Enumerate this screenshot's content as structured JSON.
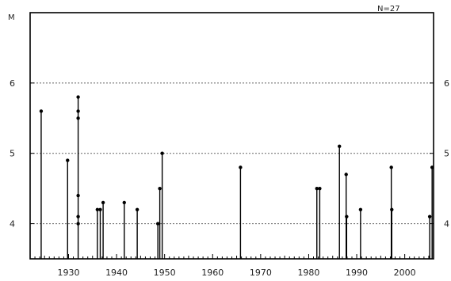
{
  "chart_data": {
    "type": "stem",
    "ylabel": "M",
    "annotation": "N=27",
    "x_range": [
      1922,
      2006
    ],
    "y_range": [
      3.5,
      7.0
    ],
    "x_ticks": [
      1930,
      1940,
      1950,
      1960,
      1970,
      1980,
      1990,
      2000
    ],
    "y_ticks_left": [
      4,
      5,
      6
    ],
    "y_ticks_right_visible_text": [
      "6",
      "5",
      "4"
    ],
    "grid": "dashed horizontal lines at 4, 5, 6",
    "baseline": 3.5,
    "events": [
      {
        "year": 1924.3,
        "magnitude": 5.6
      },
      {
        "year": 1929.8,
        "magnitude": 4.9
      },
      {
        "year": 1932.0,
        "magnitude": 5.8
      },
      {
        "year": 1932.0,
        "magnitude": 5.6
      },
      {
        "year": 1932.0,
        "magnitude": 5.5
      },
      {
        "year": 1932.0,
        "magnitude": 4.4
      },
      {
        "year": 1932.0,
        "magnitude": 4.1
      },
      {
        "year": 1932.0,
        "magnitude": 4.0
      },
      {
        "year": 1936.0,
        "magnitude": 4.2
      },
      {
        "year": 1936.6,
        "magnitude": 4.2
      },
      {
        "year": 1937.2,
        "magnitude": 4.3
      },
      {
        "year": 1941.6,
        "magnitude": 4.3
      },
      {
        "year": 1944.3,
        "magnitude": 4.2
      },
      {
        "year": 1948.6,
        "magnitude": 4.0
      },
      {
        "year": 1949.0,
        "magnitude": 4.5
      },
      {
        "year": 1949.5,
        "magnitude": 5.0
      },
      {
        "year": 1965.8,
        "magnitude": 4.8
      },
      {
        "year": 1981.7,
        "magnitude": 4.5
      },
      {
        "year": 1982.3,
        "magnitude": 4.5
      },
      {
        "year": 1986.4,
        "magnitude": 5.1
      },
      {
        "year": 1987.8,
        "magnitude": 4.7
      },
      {
        "year": 1987.9,
        "magnitude": 4.1
      },
      {
        "year": 1990.8,
        "magnitude": 4.2
      },
      {
        "year": 1997.2,
        "magnitude": 4.8
      },
      {
        "year": 1997.3,
        "magnitude": 4.2
      },
      {
        "year": 2005.2,
        "magnitude": 4.1
      },
      {
        "year": 2005.7,
        "magnitude": 4.8
      }
    ]
  }
}
